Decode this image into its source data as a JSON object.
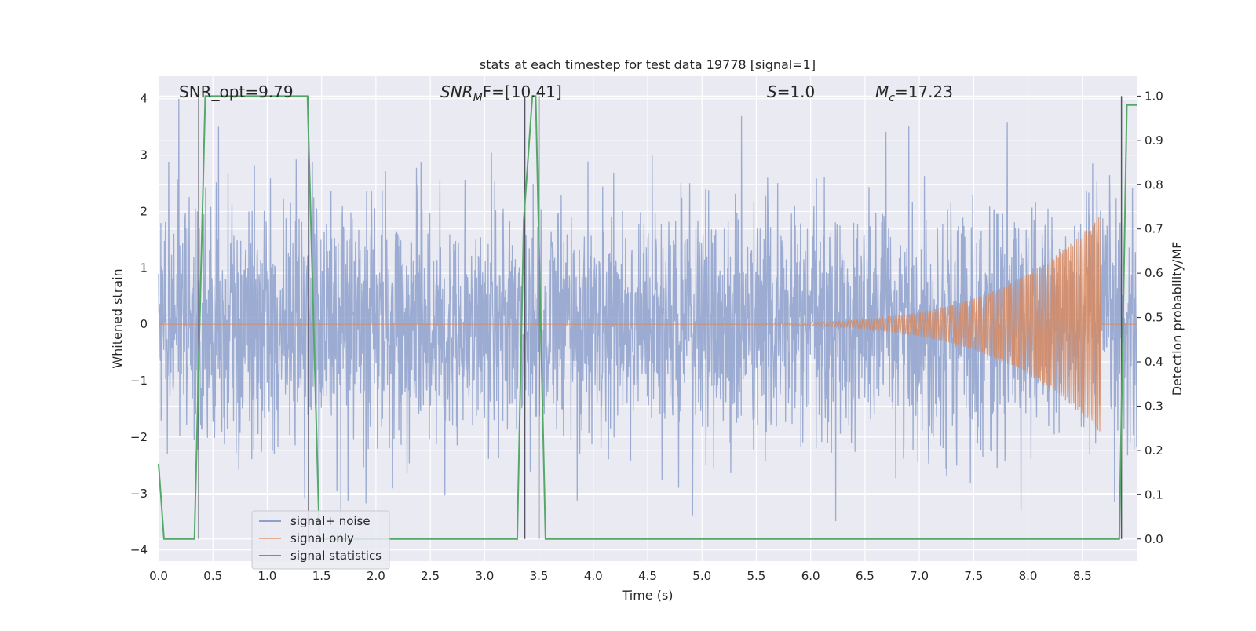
{
  "chart_data": {
    "type": "line",
    "title": "stats at each timestep for test data 19778 [signal=1]",
    "xlabel": "Time (s)",
    "ylabel": "Whitened strain",
    "y2label": "Detection probability/MF",
    "xlim": [
      0.0,
      9.0
    ],
    "ylim": [
      -4.2,
      4.4
    ],
    "y2lim": [
      -0.05,
      1.045
    ],
    "x_ticks": [
      "0.0",
      "0.5",
      "1.0",
      "1.5",
      "2.0",
      "2.5",
      "3.0",
      "3.5",
      "4.0",
      "4.5",
      "5.0",
      "5.5",
      "6.0",
      "6.5",
      "7.0",
      "7.5",
      "8.0",
      "8.5"
    ],
    "y_ticks": [
      "4",
      "3",
      "2",
      "1",
      "0",
      "−1",
      "−2",
      "−3",
      "−4"
    ],
    "y2_ticks": [
      "1.0",
      "0.9",
      "0.8",
      "0.7",
      "0.6",
      "0.5",
      "0.4",
      "0.3",
      "0.2",
      "0.1",
      "0.0"
    ],
    "grid": true,
    "legend_position": "lower-left",
    "annotations": {
      "snr_opt": "SNR_opt=9.79",
      "snr_mf_sym": "SNR",
      "snr_mf_sub": "M",
      "snr_mf_rest": "F=[10.41]",
      "s_sym": "S",
      "s_rest": "=1.0",
      "mc_sym": "M",
      "mc_sub": "c",
      "mc_rest": "=17.23"
    },
    "series": [
      {
        "name": "signal+ noise",
        "color": "#8da0cb",
        "description": "noisy whitened strain, amplitude roughly between -3.6 and 4.0"
      },
      {
        "name": "signal only",
        "color": "#dd8452",
        "chirp_start_s": 4.0,
        "chirp_peak_s": 8.65,
        "chirp_peak_amplitude": 1.9,
        "chirp_end_s": 8.67
      },
      {
        "name": "signal statistics",
        "color": "#55a868",
        "axis": "right",
        "x": [
          0.0,
          0.05,
          0.3,
          0.33,
          0.43,
          1.35,
          1.37,
          1.48,
          3.3,
          3.36,
          3.44,
          3.47,
          3.56,
          3.66,
          8.8,
          8.84,
          8.91,
          9.0
        ],
        "y": [
          0.17,
          0.0,
          0.0,
          0.0,
          1.0,
          1.0,
          1.0,
          0.0,
          0.0,
          0.72,
          1.0,
          1.0,
          0.0,
          0.0,
          0.0,
          0.0,
          0.98,
          0.98
        ]
      }
    ],
    "vertical_lines": [
      0.37,
      1.38,
      3.37,
      3.5,
      8.86
    ]
  }
}
